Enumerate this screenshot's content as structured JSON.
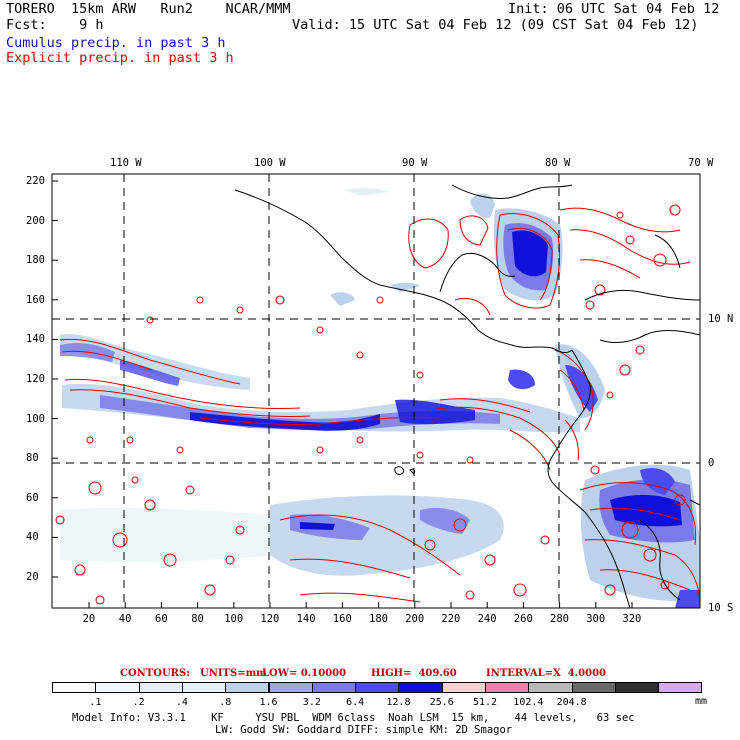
{
  "header": {
    "model": "TORERO  15km ARW   Run2    NCAR/MMM",
    "init": "Init: 06 UTC Sat 04 Feb 12",
    "fcst": "Fcst:    9 h",
    "valid": "Valid: 15 UTC Sat 04 Feb 12 (09 CST Sat 04 Feb 12)",
    "legend_cumulus": "Cumulus precip. in past 3 h",
    "legend_explicit": "Explicit precip. in past 3 h"
  },
  "colors": {
    "cumulus": "#1010c0",
    "explicit": "#e00000",
    "coast": "#000000"
  },
  "axes": {
    "top_lon_labels": [
      "110 W",
      "100 W",
      "90 W",
      "80 W",
      "70 W"
    ],
    "right_lat_labels": [
      "10 N",
      "0",
      "10 S"
    ],
    "left_grid_labels": [
      "220",
      "200",
      "180",
      "160",
      "140",
      "120",
      "100",
      "80",
      "60",
      "40",
      "20"
    ],
    "bottom_grid_labels": [
      "20",
      "40",
      "60",
      "80",
      "100",
      "120",
      "140",
      "160",
      "180",
      "200",
      "220",
      "240",
      "260",
      "280",
      "300",
      "320"
    ]
  },
  "contours_info": {
    "label": "CONTOURS:",
    "units": "UNITS=mm",
    "low": "LOW= 0.10000",
    "high": "HIGH=  409.60",
    "interval": "INTERVAL=X  4.0000"
  },
  "colorbar": {
    "colors": [
      "#ffffff",
      "#f2f6fb",
      "#e7eef8",
      "#e2f2f4",
      "#bcd2ec",
      "#9fa9e8",
      "#7a7ae8",
      "#4c4cf0",
      "#1010d8",
      "#f8d0d0",
      "#f080b0",
      "#b8b8b8",
      "#6a6a6a",
      "#303030",
      "#d8a8f0"
    ],
    "labels": [
      ".1",
      ".2",
      ".4",
      ".8",
      "1.6",
      "3.2",
      "6.4",
      "12.8",
      "25.6",
      "51.2",
      "102.4",
      "204.8"
    ],
    "unit": "mm"
  },
  "model_info": {
    "line1": "Model Info: V3.3.1    KF     YSU PBL  WDM 6class  Noah LSM  15 km,    44 levels,   63 sec",
    "line2": "LW: Godd SW: Goddard DIFF: simple KM: 2D Smagor"
  }
}
